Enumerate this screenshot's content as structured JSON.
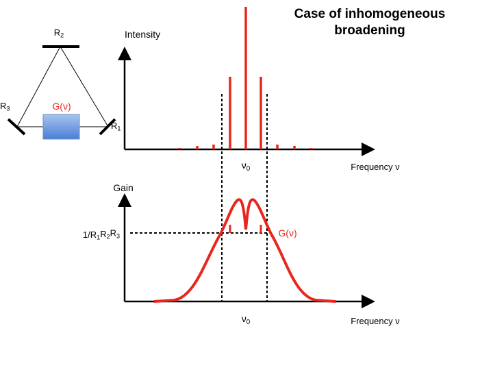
{
  "title": [
    "Case of inhomogeneous",
    "broadening"
  ],
  "cavity": {
    "top_mirror": [
      {
        "t": "R"
      },
      {
        "sub": "2"
      }
    ],
    "left_mirror": [
      {
        "t": "R"
      },
      {
        "sub": "3"
      }
    ],
    "right_mirror": [
      {
        "t": "R"
      },
      {
        "sub": "1"
      }
    ],
    "gain_label": "G(ν)"
  },
  "intensity_plot": {
    "y_label": "Intensity",
    "center_label": [
      {
        "t": "ν"
      },
      {
        "sub": "0"
      }
    ],
    "x_label": "Frequency ν"
  },
  "gain_plot": {
    "y_label": "Gain",
    "threshold_label": [
      {
        "t": "1/R"
      },
      {
        "sub": "1"
      },
      {
        "t": "R"
      },
      {
        "sub": "2"
      },
      {
        "t": "R"
      },
      {
        "sub": "3"
      }
    ],
    "curve_label": "G(ν)",
    "center_label": [
      {
        "t": "ν"
      },
      {
        "sub": "0"
      }
    ],
    "x_label": "Frequency ν"
  }
}
